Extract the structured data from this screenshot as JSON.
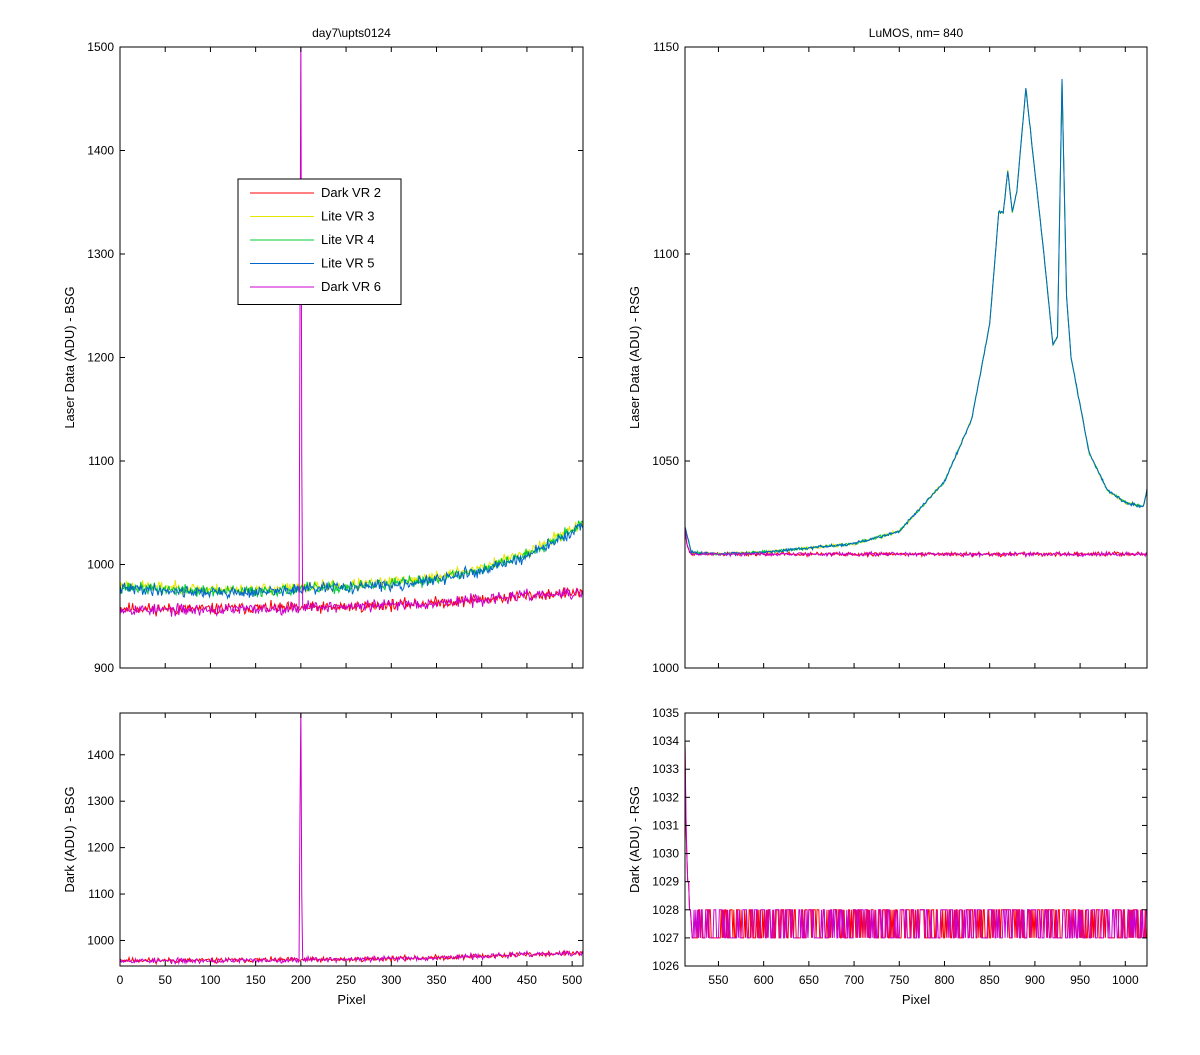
{
  "figure": {
    "background": "#ffffff",
    "series_colors": {
      "Dark VR 2": "#ff0000",
      "Lite VR 3": "#e6e600",
      "Lite VR 4": "#00cc33",
      "Lite VR 5": "#0066cc",
      "Dark VR 6": "#cc00cc"
    }
  },
  "chart_data": [
    {
      "id": "laser-bsg",
      "type": "line",
      "title": "day7\\upts0124",
      "xlabel": "",
      "ylabel": "Laser Data (ADU) - BSG",
      "xlim": [
        0,
        512
      ],
      "ylim": [
        900,
        1500
      ],
      "xticks": [
        0,
        50,
        100,
        150,
        200,
        250,
        300,
        350,
        400,
        450,
        500
      ],
      "xticklabels_visible": false,
      "yticks": [
        900,
        1000,
        1100,
        1200,
        1300,
        1400,
        1500
      ],
      "legend": {
        "position": "upper-middle-left",
        "entries": [
          "Dark VR 2",
          "Lite VR 3",
          "Lite VR 4",
          "Lite VR 5",
          "Dark VR 6"
        ]
      },
      "grid": false,
      "series": [
        {
          "name": "Dark VR 2",
          "color": "#ff0000",
          "x": [
            0,
            50,
            100,
            150,
            200,
            250,
            300,
            350,
            400,
            450,
            512
          ],
          "values": [
            958,
            957,
            957,
            958,
            958,
            959,
            961,
            963,
            966,
            970,
            973
          ],
          "noise": 6,
          "seed": 11
        },
        {
          "name": "Lite VR 3",
          "color": "#e6e600",
          "x": [
            0,
            50,
            100,
            150,
            200,
            250,
            300,
            350,
            400,
            450,
            512
          ],
          "values": [
            980,
            978,
            976,
            976,
            978,
            980,
            983,
            988,
            997,
            1012,
            1040
          ],
          "noise": 6,
          "seed": 23
        },
        {
          "name": "Lite VR 4",
          "color": "#00cc33",
          "x": [
            0,
            50,
            100,
            150,
            200,
            250,
            300,
            350,
            400,
            450,
            512
          ],
          "values": [
            978,
            976,
            974,
            974,
            976,
            978,
            981,
            986,
            995,
            1010,
            1040
          ],
          "noise": 6,
          "seed": 37
        },
        {
          "name": "Lite VR 5",
          "color": "#0066cc",
          "x": [
            0,
            50,
            100,
            150,
            200,
            250,
            300,
            350,
            400,
            450,
            512
          ],
          "values": [
            977,
            975,
            973,
            973,
            976,
            978,
            980,
            985,
            994,
            1008,
            1036
          ],
          "noise": 6,
          "seed": 41
        },
        {
          "name": "Dark VR 6",
          "color": "#cc00cc",
          "x": [
            0,
            50,
            100,
            150,
            198,
            199,
            200,
            201,
            202,
            250,
            300,
            350,
            400,
            450,
            512
          ],
          "values": [
            957,
            956,
            956,
            957,
            958,
            1230,
            1520,
            1100,
            960,
            959,
            961,
            963,
            966,
            970,
            972
          ],
          "noise": 6,
          "seed": 53
        }
      ]
    },
    {
      "id": "laser-rsg",
      "type": "line",
      "title": "LuMOS, nm= 840",
      "xlabel": "",
      "ylabel": "Laser Data (ADU) - RSG",
      "xlim": [
        513,
        1024
      ],
      "ylim": [
        1000,
        1150
      ],
      "xticks": [
        550,
        600,
        650,
        700,
        750,
        800,
        850,
        900,
        950,
        1000
      ],
      "xticklabels_visible": false,
      "yticks": [
        1000,
        1050,
        1100,
        1150
      ],
      "grid": false,
      "series": [
        {
          "name": "Dark VR 2",
          "color": "#ff0000",
          "x": [
            513,
            515,
            518,
            520,
            600,
            700,
            800,
            900,
            1000,
            1024
          ],
          "values": [
            1034,
            1030,
            1028,
            1027.5,
            1027.5,
            1027.5,
            1027.5,
            1027.5,
            1027.5,
            1027.5
          ],
          "noise": 0.5,
          "seed": 61
        },
        {
          "name": "Lite VR 3",
          "color": "#e6e600",
          "x": [
            513,
            520,
            550,
            600,
            650,
            700,
            750,
            800,
            830,
            850,
            860,
            865,
            870,
            875,
            880,
            890,
            900,
            910,
            920,
            925,
            930,
            935,
            940,
            960,
            980,
            1000,
            1020,
            1024
          ],
          "values": [
            1034,
            1028,
            1027.5,
            1028,
            1029,
            1030,
            1033,
            1045,
            1060,
            1083,
            1110,
            1110,
            1120,
            1110,
            1115,
            1140,
            1120,
            1100,
            1078,
            1080,
            1142,
            1090,
            1075,
            1052,
            1043,
            1040,
            1039,
            1043
          ],
          "noise": 0.4,
          "seed": 71
        },
        {
          "name": "Lite VR 4",
          "color": "#00cc33",
          "x": [
            513,
            520,
            550,
            600,
            650,
            700,
            750,
            800,
            830,
            850,
            860,
            865,
            870,
            875,
            880,
            890,
            900,
            910,
            920,
            925,
            930,
            935,
            940,
            960,
            980,
            1000,
            1020,
            1024
          ],
          "values": [
            1034,
            1028,
            1027.5,
            1028,
            1029,
            1030,
            1033,
            1045,
            1060,
            1083,
            1110,
            1110,
            1120,
            1110,
            1115,
            1140,
            1120,
            1100,
            1078,
            1080,
            1142,
            1090,
            1075,
            1052,
            1043,
            1040,
            1039,
            1043
          ],
          "noise": 0.4,
          "seed": 79
        },
        {
          "name": "Lite VR 5",
          "color": "#0066cc",
          "x": [
            513,
            520,
            550,
            600,
            650,
            700,
            750,
            800,
            830,
            850,
            860,
            865,
            870,
            875,
            880,
            890,
            900,
            910,
            920,
            925,
            930,
            935,
            940,
            960,
            980,
            1000,
            1020,
            1024
          ],
          "values": [
            1034,
            1028,
            1027.5,
            1028,
            1029,
            1030,
            1033,
            1045,
            1060,
            1083,
            1110,
            1110,
            1120,
            1110,
            1115,
            1140,
            1120,
            1100,
            1078,
            1080,
            1142,
            1090,
            1075,
            1052,
            1043,
            1040,
            1039,
            1043
          ],
          "noise": 0.4,
          "seed": 83
        },
        {
          "name": "Dark VR 6",
          "color": "#cc00cc",
          "x": [
            513,
            515,
            518,
            520,
            600,
            700,
            800,
            900,
            1000,
            1024
          ],
          "values": [
            1034,
            1030,
            1028,
            1027.5,
            1027.5,
            1027.5,
            1027.5,
            1027.5,
            1027.5,
            1027.5
          ],
          "noise": 0.5,
          "seed": 89
        }
      ]
    },
    {
      "id": "dark-bsg",
      "type": "line",
      "title": "",
      "xlabel": "Pixel",
      "ylabel": "Dark (ADU) - BSG",
      "xlim": [
        0,
        512
      ],
      "ylim": [
        945,
        1490
      ],
      "xticks": [
        0,
        50,
        100,
        150,
        200,
        250,
        300,
        350,
        400,
        450,
        500
      ],
      "xticklabels_visible": true,
      "yticks": [
        1000,
        1100,
        1200,
        1300,
        1400
      ],
      "grid": false,
      "series": [
        {
          "name": "Dark VR 2",
          "color": "#ff0000",
          "x": [
            0,
            50,
            100,
            150,
            200,
            250,
            300,
            350,
            400,
            450,
            512
          ],
          "values": [
            958,
            957,
            957,
            958,
            958,
            959,
            961,
            963,
            966,
            970,
            973
          ],
          "noise": 6,
          "seed": 11
        },
        {
          "name": "Dark VR 6",
          "color": "#cc00cc",
          "x": [
            0,
            50,
            100,
            150,
            198,
            199,
            200,
            201,
            202,
            250,
            300,
            350,
            400,
            450,
            512
          ],
          "values": [
            957,
            956,
            956,
            957,
            958,
            1270,
            1500,
            1100,
            960,
            959,
            961,
            963,
            966,
            970,
            972
          ],
          "noise": 6,
          "seed": 53
        }
      ]
    },
    {
      "id": "dark-rsg",
      "type": "line",
      "title": "",
      "xlabel": "Pixel",
      "ylabel": "Dark (ADU) - RSG",
      "xlim": [
        513,
        1024
      ],
      "ylim": [
        1026,
        1035
      ],
      "xticks": [
        550,
        600,
        650,
        700,
        750,
        800,
        850,
        900,
        950,
        1000
      ],
      "xticklabels_visible": true,
      "yticks": [
        1026,
        1027,
        1028,
        1029,
        1030,
        1031,
        1032,
        1033,
        1034,
        1035
      ],
      "grid": false,
      "series": [
        {
          "name": "Dark VR 2",
          "color": "#ff0000",
          "x": [
            513,
            514,
            515,
            516,
            517,
            518,
            519,
            520,
            1024
          ],
          "values": [
            1034,
            1031,
            1030,
            1029,
            1029,
            1028,
            1028,
            1027.5,
            1027.5
          ],
          "square_wave": [
            1027,
            1028
          ],
          "seed": 97
        },
        {
          "name": "Dark VR 6",
          "color": "#cc00cc",
          "x": [
            513,
            514,
            515,
            516,
            517,
            518,
            519,
            520,
            1024
          ],
          "values": [
            1034,
            1031.5,
            1030,
            1029,
            1029,
            1028,
            1028,
            1027.5,
            1027.5
          ],
          "square_wave": [
            1027,
            1028
          ],
          "seed": 101
        }
      ]
    }
  ]
}
